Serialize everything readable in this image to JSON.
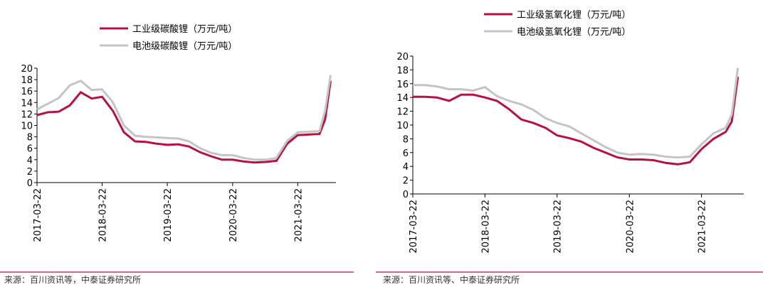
{
  "chart_data": [
    {
      "type": "line",
      "legend": "top",
      "source": "来源：百川资讯等，中泰证券研究所",
      "x": [
        "2017-03-22",
        "2017-05-22",
        "2017-07-22",
        "2017-09-22",
        "2017-11-22",
        "2018-01-22",
        "2018-03-22",
        "2018-05-22",
        "2018-07-22",
        "2018-09-22",
        "2018-11-22",
        "2019-01-22",
        "2019-03-22",
        "2019-05-22",
        "2019-07-22",
        "2019-09-22",
        "2019-11-22",
        "2020-01-22",
        "2020-03-22",
        "2020-05-22",
        "2020-07-22",
        "2020-09-22",
        "2020-11-22",
        "2021-01-22",
        "2021-03-22",
        "2021-05-22",
        "2021-07-22",
        "2021-08-22",
        "2021-09-22"
      ],
      "xlim": [
        "2017-03-22",
        "2021-10-22"
      ],
      "xticks": [
        "2017-03-22",
        "2018-03-22",
        "2019-03-22",
        "2020-03-22",
        "2021-03-22"
      ],
      "ylim": [
        0,
        20
      ],
      "yticks": [
        0,
        2,
        4,
        6,
        8,
        10,
        12,
        14,
        16,
        18,
        20
      ],
      "series": [
        {
          "name": "工业级碳酸锂（万元/吨）",
          "color": "#b5123f",
          "values": [
            11.8,
            12.3,
            12.4,
            13.5,
            15.8,
            14.7,
            15,
            12.5,
            8.8,
            7.2,
            7.1,
            6.8,
            6.6,
            6.7,
            6.3,
            5.3,
            4.6,
            4.0,
            4.0,
            3.7,
            3.5,
            3.6,
            3.8,
            6.8,
            8.3,
            8.4,
            8.5,
            11,
            17.8
          ]
        },
        {
          "name": "电池级碳酸锂（万元/吨）",
          "color": "#c4c4c4",
          "values": [
            12.8,
            13.8,
            14.8,
            17,
            17.8,
            16.2,
            16.3,
            14,
            10,
            8.2,
            8,
            7.9,
            7.8,
            7.7,
            7.2,
            6,
            5.2,
            4.8,
            4.8,
            4.3,
            4.0,
            4.0,
            4.3,
            7.3,
            8.8,
            8.9,
            9,
            12.5,
            18.8
          ]
        }
      ]
    },
    {
      "type": "line",
      "legend": "top",
      "source": "来源：百川资讯等、中泰证券研究所",
      "x": [
        "2017-03-22",
        "2017-05-22",
        "2017-07-22",
        "2017-09-22",
        "2017-11-22",
        "2018-01-22",
        "2018-03-22",
        "2018-05-22",
        "2018-07-22",
        "2018-09-22",
        "2018-11-22",
        "2019-01-22",
        "2019-03-22",
        "2019-05-22",
        "2019-07-22",
        "2019-09-22",
        "2019-11-22",
        "2020-01-22",
        "2020-03-22",
        "2020-05-22",
        "2020-07-22",
        "2020-09-22",
        "2020-11-22",
        "2021-01-22",
        "2021-03-22",
        "2021-05-22",
        "2021-07-22",
        "2021-08-22",
        "2021-09-22"
      ],
      "xlim": [
        "2017-03-22",
        "2021-10-22"
      ],
      "xticks": [
        "2017-03-22",
        "2018-03-22",
        "2019-03-22",
        "2020-03-22",
        "2021-03-22"
      ],
      "ylim": [
        0,
        20
      ],
      "yticks": [
        0,
        2,
        4,
        6,
        8,
        10,
        12,
        14,
        16,
        18,
        20
      ],
      "series": [
        {
          "name": "工业级氢氧化锂（万元/吨）",
          "color": "#b5123f",
          "values": [
            14.1,
            14.1,
            14.0,
            13.5,
            14.4,
            14.4,
            14.0,
            13.5,
            12.3,
            10.8,
            10.3,
            9.6,
            8.5,
            8.1,
            7.6,
            6.7,
            6.0,
            5.3,
            5.0,
            5.0,
            4.9,
            4.5,
            4.3,
            4.6,
            6.5,
            8.0,
            9.0,
            10.5,
            17.0
          ]
        },
        {
          "name": "电池级氢氧化锂（万元/吨）",
          "color": "#c4c4c4",
          "values": [
            15.8,
            15.8,
            15.6,
            15.2,
            15.2,
            15.0,
            15.5,
            14.2,
            13.5,
            13.0,
            12.2,
            11,
            10.3,
            9.8,
            8.8,
            7.8,
            6.8,
            6.0,
            5.7,
            5.8,
            5.7,
            5.4,
            5.3,
            5.4,
            7.2,
            8.8,
            9.6,
            11.5,
            18.3
          ]
        }
      ]
    }
  ]
}
